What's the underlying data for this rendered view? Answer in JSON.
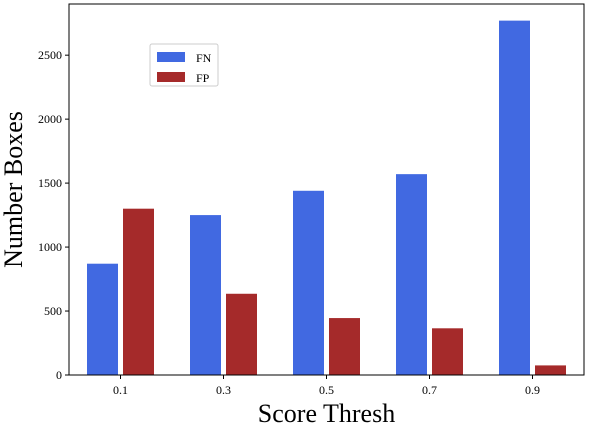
{
  "chart_data": {
    "type": "bar",
    "title": "",
    "xlabel": "Score Thresh",
    "ylabel": "Number Boxes",
    "categories": [
      "0.1",
      "0.3",
      "0.5",
      "0.7",
      "0.9"
    ],
    "series": [
      {
        "name": "FN",
        "color": "#4169e1",
        "values": [
          870,
          1250,
          1440,
          1570,
          2770
        ]
      },
      {
        "name": "FP",
        "color": "#a52a2a",
        "values": [
          1300,
          635,
          445,
          365,
          75
        ]
      }
    ],
    "ylim": [
      0,
      2900
    ],
    "yticks": [
      "0",
      "500",
      "1000",
      "1500",
      "2000",
      "2500"
    ],
    "legend_position": "upper-left",
    "grid": false
  }
}
